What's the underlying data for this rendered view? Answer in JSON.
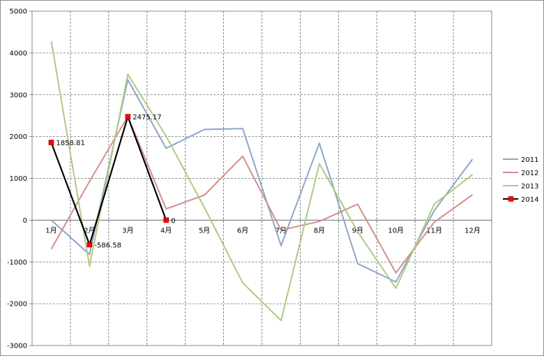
{
  "chart_data": {
    "type": "line",
    "categories": [
      "1月",
      "2月",
      "3月",
      "4月",
      "5月",
      "6月",
      "7月",
      "8月",
      "9月",
      "10月",
      "11月",
      "12月"
    ],
    "ylim": [
      -3000,
      5000
    ],
    "yticks": [
      -3000,
      -2000,
      -1000,
      0,
      1000,
      2000,
      3000,
      4000,
      5000
    ],
    "grid": true,
    "legend_position": "right",
    "series": [
      {
        "name": "2011",
        "color": "#8ea4cb",
        "marker": "none",
        "values": [
          0,
          -820,
          3360,
          1720,
          2170,
          2190,
          -610,
          1840,
          -1040,
          -1480,
          230,
          1460
        ]
      },
      {
        "name": "2012",
        "color": "#d08f8e",
        "marker": "none",
        "values": [
          -690,
          930,
          2480,
          270,
          600,
          1530,
          -240,
          -30,
          380,
          -1260,
          -50,
          610
        ]
      },
      {
        "name": "2013",
        "color": "#aeca83",
        "marker": "none",
        "values": [
          4280,
          -1100,
          3490,
          2010,
          300,
          -1500,
          -2400,
          1350,
          -280,
          -1630,
          380,
          1090
        ]
      },
      {
        "name": "2014",
        "color": "#000000",
        "marker": "square",
        "marker_color": "#ff0000",
        "values": [
          1858.81,
          -586.58,
          2475.17,
          0,
          null,
          null,
          null,
          null,
          null,
          null,
          null,
          null
        ],
        "data_labels": [
          "1858.81",
          "-586.58",
          "2475.17",
          "0"
        ]
      }
    ]
  }
}
